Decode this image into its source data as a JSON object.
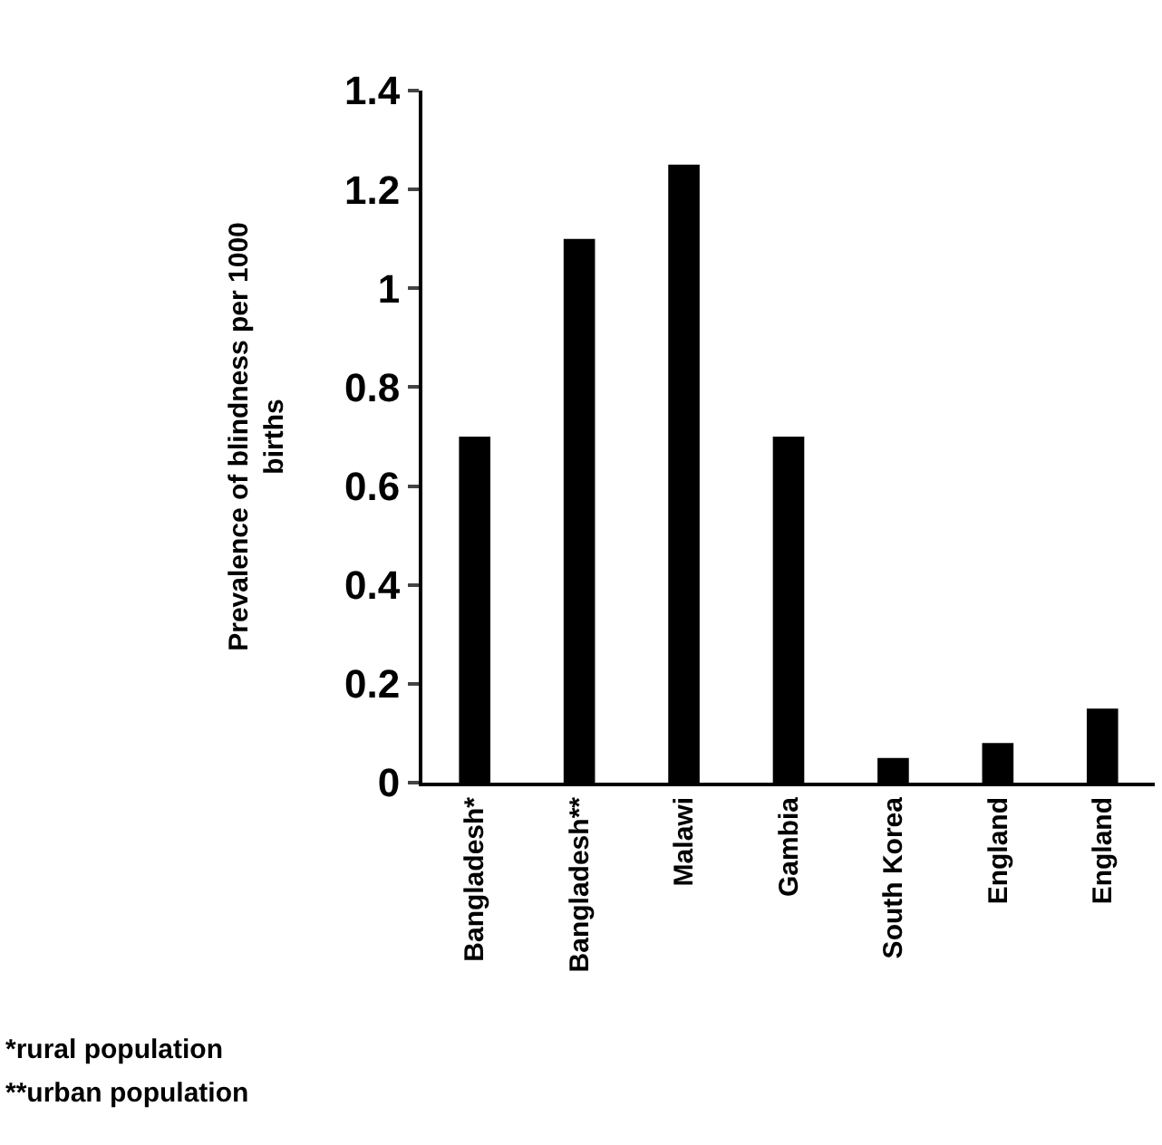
{
  "chart_data": {
    "type": "bar",
    "ylabel": "Prevalence of blindness per 1000 births",
    "categories": [
      "Bangladesh*",
      "Bangladesh**",
      "Malawi",
      "Gambia",
      "South Korea",
      "England",
      "England"
    ],
    "values": [
      0.7,
      1.1,
      1.25,
      0.7,
      0.05,
      0.08,
      0.15
    ],
    "color": "#000000",
    "ylim": [
      0,
      1.4
    ],
    "yticks": [
      0,
      0.2,
      0.4,
      0.6,
      0.8,
      1,
      1.2,
      1.4
    ],
    "annotations": [
      "*rural population",
      "**urban population"
    ]
  }
}
